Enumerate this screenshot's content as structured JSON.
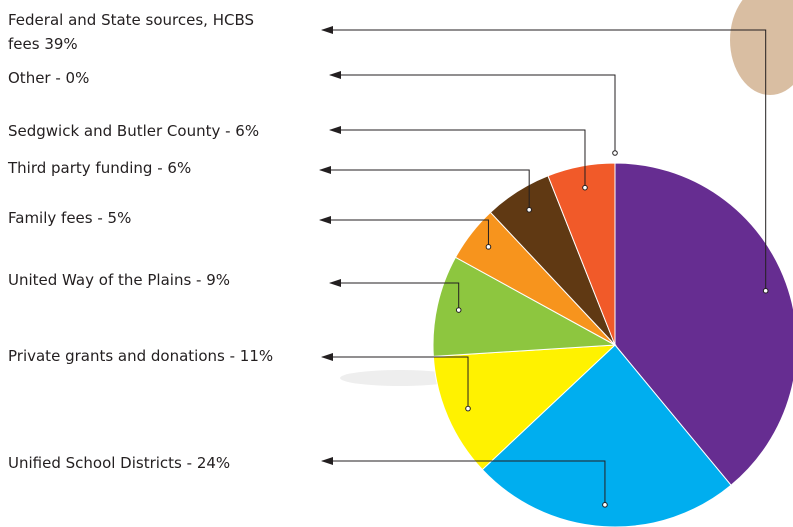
{
  "chart_data": {
    "type": "pie",
    "categories": [
      "Federal and State sources, HCBS fees 39%",
      "Unified School Districts - 24%",
      "Private grants and donations - 11%",
      "United Way of the Plains - 9%",
      "Family fees - 5%",
      "Third party funding - 6%",
      "Sedgwick and Butler County - 6%",
      "Other - 0%"
    ],
    "values": [
      39,
      24,
      11,
      9,
      5,
      6,
      6,
      0
    ],
    "colors": [
      "#662d91",
      "#00aeef",
      "#fff200",
      "#8dc63f",
      "#f7941d",
      "#603913",
      "#f15a29",
      "#999999"
    ]
  }
}
